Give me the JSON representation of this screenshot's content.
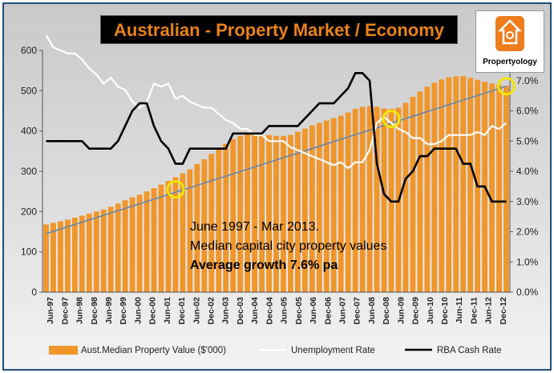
{
  "title": "Australian - Property Market / Economy",
  "logo_text": "Propertyology",
  "annotation": {
    "line1": "June 1997 - Mar 2013.",
    "line2": "Median capital city property values",
    "line3": "Average growth 7.6% pa"
  },
  "colors": {
    "bars": "#f0962a",
    "unemployment": "#ffffff",
    "cash_rate": "#000000",
    "trend": "#5b86b6",
    "highlight": "#f2e600",
    "title_text": "#e8821a"
  },
  "chart_data": {
    "type": "bar",
    "title": "Australian - Property Market / Economy",
    "x_tick_labels": [
      "Jun-97",
      "Dec-97",
      "Jun-98",
      "Dec-98",
      "Jun-99",
      "Dec-99",
      "Jun-00",
      "Dec-00",
      "Jun-01",
      "Dec-01",
      "Jun-02",
      "Dec-02",
      "Jun-03",
      "Dec-03",
      "Jun-04",
      "Dec-04",
      "Jun-05",
      "Dec-05",
      "Jun-06",
      "Dec-06",
      "Jun-07",
      "Dec-07",
      "Jun-08",
      "Dec-08",
      "Jun-09",
      "Dec-09",
      "Jun-10",
      "Dec-10",
      "Jun-11",
      "Dec-11",
      "Jun-12",
      "Dec-12"
    ],
    "y_left": {
      "min": 0,
      "max": 600,
      "ticks": [
        0,
        100,
        200,
        300,
        400,
        500,
        600
      ]
    },
    "y_right": {
      "min": 0,
      "max": 8,
      "ticks": [
        "0.0%",
        "1.0%",
        "2.0%",
        "3.0%",
        "4.0%",
        "5.0%",
        "6.0%",
        "7.0%",
        "8.0%"
      ]
    },
    "grid": false,
    "legend_position": "bottom",
    "series": [
      {
        "name": "Aust.Median Property  Value ($'000)",
        "axis": "left",
        "values": [
          168,
          172,
          176,
          180,
          185,
          190,
          195,
          200,
          205,
          212,
          220,
          228,
          235,
          242,
          250,
          258,
          267,
          276,
          285,
          295,
          305,
          318,
          330,
          343,
          355,
          368,
          380,
          388,
          392,
          392,
          390,
          390,
          388,
          388,
          390,
          398,
          406,
          414,
          420,
          426,
          432,
          438,
          446,
          455,
          460,
          462,
          460,
          456,
          455,
          458,
          470,
          485,
          498,
          510,
          520,
          528,
          533,
          536,
          536,
          532,
          527,
          522,
          518,
          514,
          512
        ]
      },
      {
        "name": "Unemployment Rate",
        "axis": "right",
        "values": [
          8.5,
          8.1,
          8.0,
          7.9,
          7.9,
          7.7,
          7.4,
          7.2,
          6.9,
          7.1,
          6.8,
          6.7,
          6.3,
          6.1,
          6.3,
          6.9,
          6.8,
          6.9,
          6.4,
          6.5,
          6.3,
          6.2,
          6.1,
          6.1,
          5.9,
          5.7,
          5.6,
          5.4,
          5.4,
          5.2,
          5.2,
          5.0,
          5.0,
          5.0,
          4.8,
          4.7,
          4.6,
          4.5,
          4.4,
          4.3,
          4.2,
          4.3,
          4.1,
          4.3,
          4.3,
          4.7,
          5.6,
          5.8,
          5.6,
          5.4,
          5.3,
          5.1,
          5.1,
          4.9,
          4.9,
          5.0,
          5.2,
          5.2,
          5.2,
          5.2,
          5.3,
          5.2,
          5.5,
          5.4,
          5.6
        ]
      },
      {
        "name": "RBA Cash Rate",
        "axis": "right",
        "values": [
          5.0,
          5.0,
          5.0,
          5.0,
          5.0,
          5.0,
          4.75,
          4.75,
          4.75,
          4.75,
          5.0,
          5.5,
          6.0,
          6.25,
          6.25,
          5.5,
          5.0,
          4.75,
          4.25,
          4.25,
          4.75,
          4.75,
          4.75,
          4.75,
          4.75,
          4.75,
          5.25,
          5.25,
          5.25,
          5.25,
          5.25,
          5.5,
          5.5,
          5.5,
          5.5,
          5.5,
          5.75,
          6.0,
          6.25,
          6.25,
          6.25,
          6.5,
          6.75,
          7.25,
          7.25,
          7.0,
          4.25,
          3.25,
          3.0,
          3.0,
          3.75,
          4.0,
          4.5,
          4.5,
          4.75,
          4.75,
          4.75,
          4.75,
          4.25,
          4.25,
          3.5,
          3.5,
          3.0,
          3.0,
          3.0
        ]
      },
      {
        "name": "Average growth trend",
        "axis": "left",
        "values": [
          145,
          511
        ]
      }
    ],
    "highlight_points": [
      {
        "index": 18,
        "value": 255
      },
      {
        "index": 48,
        "value": 430
      },
      {
        "index": 64,
        "value": 511
      }
    ]
  }
}
